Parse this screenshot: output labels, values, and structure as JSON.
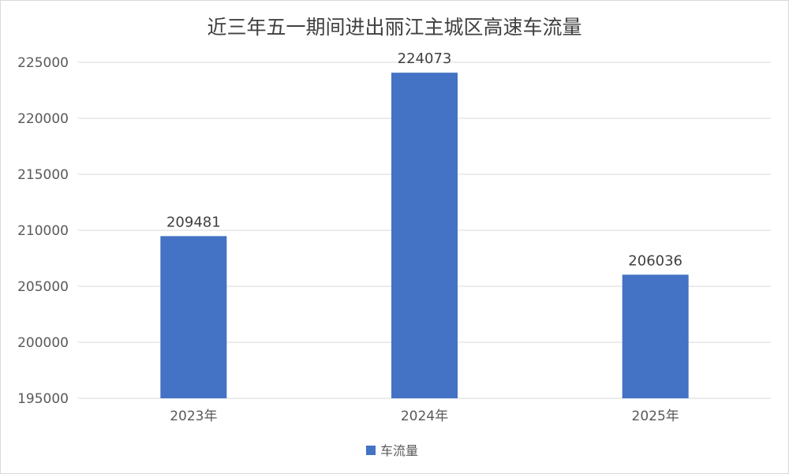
{
  "chart_data": {
    "type": "bar",
    "title": "近三年五一期间进出丽江主城区高速车流量",
    "categories": [
      "2023年",
      "2024年",
      "2025年"
    ],
    "series": [
      {
        "name": "车流量",
        "values": [
          209481,
          224073,
          206036
        ],
        "color": "#4472C4"
      }
    ],
    "data_labels": [
      "209481",
      "224073",
      "206036"
    ],
    "ylim": [
      195000,
      225000
    ],
    "yticks": [
      195000,
      200000,
      205000,
      210000,
      215000,
      220000,
      225000
    ],
    "ytick_labels": [
      "195000",
      "200000",
      "205000",
      "210000",
      "215000",
      "220000",
      "225000"
    ],
    "grid": true,
    "legend_position": "bottom",
    "gridline_color": "#d9d9d9",
    "axis_text_color": "#595959"
  }
}
